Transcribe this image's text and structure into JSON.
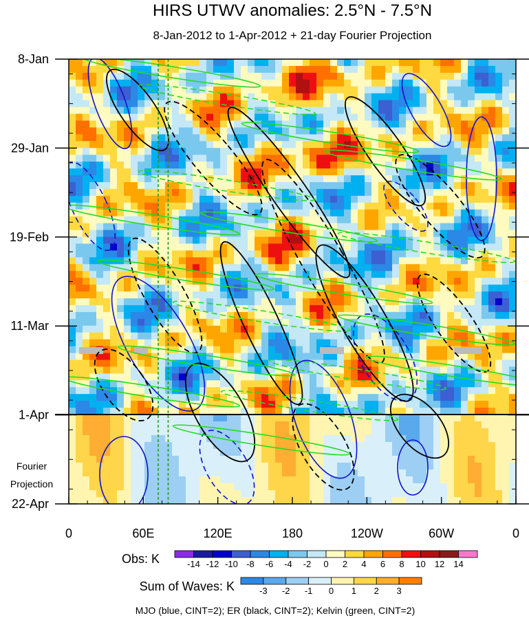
{
  "chart_data": {
    "type": "heatmap",
    "title": "HIRS UTWV anomalies: 2.5°N - 7.5°N",
    "subtitle": "8-Jan-2012 to 1-Apr-2012 + 21-day Fourier Projection",
    "x_ticks": [
      "0",
      "60E",
      "120E",
      "180",
      "120W",
      "60W",
      "0"
    ],
    "y_ticks": [
      "8-Jan",
      "29-Jan",
      "19-Feb",
      "11-Mar",
      "1-Apr",
      "22-Apr"
    ],
    "y_range": [
      "8-Jan-2012",
      "22-Apr-2012"
    ],
    "projection_start": "1-Apr",
    "projection_label": [
      "Fourier",
      "Projection"
    ],
    "obs_colorbar": {
      "label": "Obs: K",
      "levels": [
        "-14",
        "-12",
        "-10",
        "-8",
        "-6",
        "-4",
        "-2",
        "0",
        "2",
        "4",
        "6",
        "8",
        "10",
        "12",
        "14"
      ],
      "colors": [
        "#8a2be2",
        "#1a1aa0",
        "#0000cd",
        "#3c5fd2",
        "#2b88e6",
        "#00b0f0",
        "#7ac8ee",
        "#c4e8f5",
        "#fffac0",
        "#ffd940",
        "#ffa500",
        "#ff7000",
        "#ee1010",
        "#b01010",
        "#8b1a1a",
        "#ff77cc"
      ]
    },
    "waves_colorbar": {
      "label": "Sum of Waves: K",
      "levels": [
        "-3",
        "-2",
        "-1",
        "0",
        "1",
        "2",
        "3"
      ],
      "colors": [
        "#2b88e6",
        "#5aa9ec",
        "#9ccff3",
        "#d9f0fa",
        "#fff5b0",
        "#ffd54a",
        "#ffad33",
        "#ff7f00"
      ]
    },
    "contours": [
      {
        "name": "MJO",
        "color": "#1010cc"
      },
      {
        "name": "ER",
        "color": "#000000"
      },
      {
        "name": "Kelvin",
        "color": "#22dd22"
      }
    ],
    "reference_lines_lon": [
      72,
      80
    ],
    "footer": "MJO (blue, CINT=2); ER (black, CINT=2); Kelvin (green, CINT=2)"
  }
}
